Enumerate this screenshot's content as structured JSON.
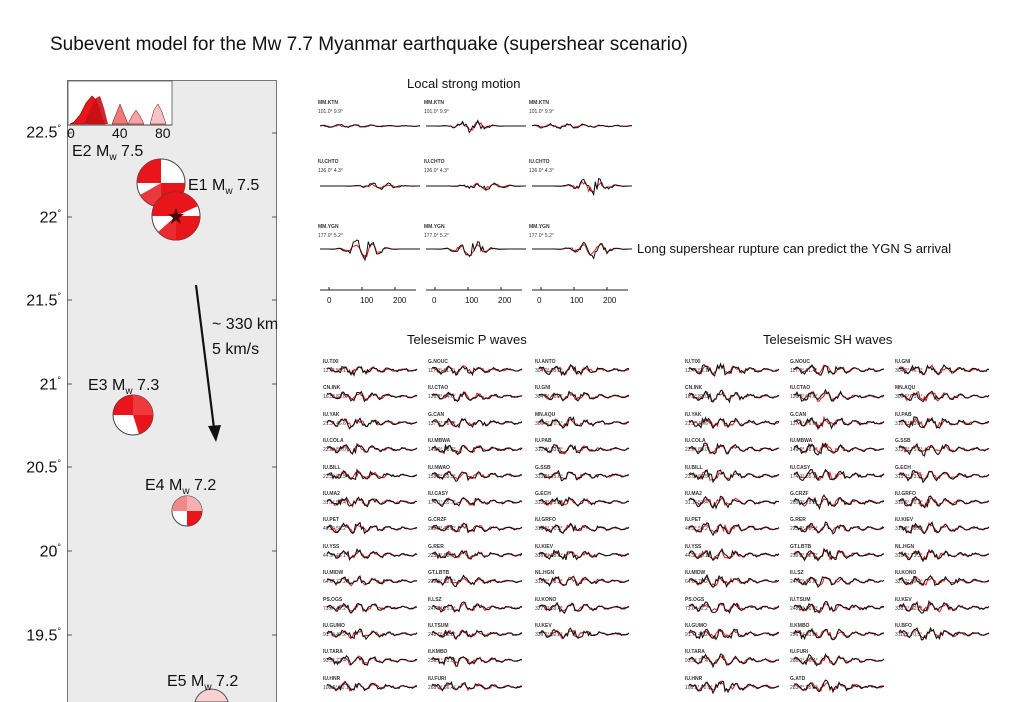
{
  "title": "Subevent model for the Mw 7.7 Myanmar earthquake (supershear scenario)",
  "map": {
    "lat_ticks": [
      "22.5",
      "22",
      "21.5",
      "21",
      "20.5",
      "20",
      "19.5"
    ],
    "inset_ticks": [
      "0",
      "40",
      "80"
    ],
    "events": [
      {
        "id": "E2",
        "mag": "7.5"
      },
      {
        "id": "E1",
        "mag": "7.5"
      },
      {
        "id": "E3",
        "mag": "7.3"
      },
      {
        "id": "E4",
        "mag": "7.2"
      },
      {
        "id": "E5",
        "mag": "7.2"
      }
    ],
    "mw_label": "M",
    "mw_sub": "w",
    "distance": "~ 330 km",
    "speed": "5 km/s",
    "degree": "°"
  },
  "local": {
    "title": "Local strong motion",
    "rows": [
      {
        "station": "MM.KTN",
        "info": "101.0° 9.9°"
      },
      {
        "station": "IU.CHTO",
        "info": "136.0° 4.3°"
      },
      {
        "station": "MM.YGN",
        "info": "177.0° 5.2°"
      }
    ],
    "x_ticks": [
      "0",
      "100",
      "200"
    ],
    "annotation": "Long supershear rupture can predict the YGN S arrival"
  },
  "tele_p": {
    "title": "Teleseismic P waves",
    "columns": [
      [
        {
          "station": "IU.TIXI",
          "info": "12.4° 53.1°"
        },
        {
          "station": "CN.INK",
          "info": "16.5° 83.0°"
        },
        {
          "station": "IU.YAK",
          "info": "21.3° 46.6°"
        },
        {
          "station": "IU.COLA",
          "info": "22.8° 80.0°"
        },
        {
          "station": "IU.BILL",
          "info": "23.5° 62.5°"
        },
        {
          "station": "IU.MA2",
          "info": "31.1° 53.4°"
        },
        {
          "station": "IU.PET",
          "info": "40.2° 56.2°"
        },
        {
          "station": "IU.YSS",
          "info": "44.9° 46.1°"
        },
        {
          "station": "IU.MIDW",
          "info": "64.6° 77.2°"
        },
        {
          "station": "PS.OGS",
          "info": "73.6° 42.2°"
        },
        {
          "station": "IU.GUMO",
          "info": "91.7° 47.2°"
        },
        {
          "station": "IU.TARA",
          "info": "93.9° 77.4°"
        },
        {
          "station": "IU.HNR",
          "info": "108.5° 70.1°"
        }
      ],
      [
        {
          "station": "G.NOUC",
          "info": "117.9° 81.4°"
        },
        {
          "station": "IU.CTAO",
          "info": "126.8° 64.6°"
        },
        {
          "station": "G.CAN",
          "info": "137.6° 76.0°"
        },
        {
          "station": "IU.MBWA",
          "info": "149.9° 48.8°"
        },
        {
          "station": "IU.NWAO",
          "info": "158.9° 59.3°"
        },
        {
          "station": "IU.CASY",
          "info": "174.1° 85.7°"
        },
        {
          "station": "G.CRZF",
          "info": "209.3° 78.8°"
        },
        {
          "station": "G.RER",
          "info": "225.2° 58.1°"
        },
        {
          "station": "GT.LBTB",
          "info": "239.5° 82.7°"
        },
        {
          "station": "II.LSZ",
          "info": "247.0° 75.6°"
        },
        {
          "station": "IU.TSUM",
          "info": "248.0° 86.8°"
        },
        {
          "station": "II.KMBO",
          "info": "256.1° 61.6°"
        },
        {
          "station": "IU.FURI",
          "info": "268.1° 56.4°"
        }
      ],
      [
        {
          "station": "IU.ANTO",
          "info": "304.0° 55.9°"
        },
        {
          "station": "IU.GNI",
          "info": "304.9° 46.7°"
        },
        {
          "station": "MN.AQU",
          "info": "306.6° 70.1°"
        },
        {
          "station": "IU.PAB",
          "info": "310.1° 83.8°"
        },
        {
          "station": "G.SSB",
          "info": "313.2° 75.6°"
        },
        {
          "station": "G.ECH",
          "info": "315.7° 73.1°"
        },
        {
          "station": "IU.GRFO",
          "info": "316.6° 70.2°"
        },
        {
          "station": "IU.KIEV",
          "info": "316.8° 58.6°"
        },
        {
          "station": "NL.HGN",
          "info": "318.5° 73.3°"
        },
        {
          "station": "IU.KONO",
          "info": "327.2° 69.4°"
        },
        {
          "station": "IU.KEV",
          "info": "338.5° 62.3°"
        }
      ]
    ]
  },
  "tele_sh": {
    "title": "Teleseismic SH waves",
    "columns": [
      [
        {
          "station": "IU.TIXI",
          "info": "12.4° 53.1°"
        },
        {
          "station": "CN.INK",
          "info": "16.5° 83.0°"
        },
        {
          "station": "IU.YAK",
          "info": "21.3° 46.6°"
        },
        {
          "station": "IU.COLA",
          "info": "22.8° 80.0°"
        },
        {
          "station": "IU.BILL",
          "info": "23.5° 62.5°"
        },
        {
          "station": "IU.MA2",
          "info": "31.1° 53.4°"
        },
        {
          "station": "IU.PET",
          "info": "40.2° 56.2°"
        },
        {
          "station": "IU.YSS",
          "info": "44.9° 46.1°"
        },
        {
          "station": "IU.MIDW",
          "info": "64.6° 77.2°"
        },
        {
          "station": "PS.OGS",
          "info": "73.6° 42.2°"
        },
        {
          "station": "IU.GUMO",
          "info": "91.7° 47.2°"
        },
        {
          "station": "IU.TARA",
          "info": "93.9° 77.4°"
        },
        {
          "station": "IU.HNR",
          "info": "108.5° 70.1°"
        }
      ],
      [
        {
          "station": "G.NOUC",
          "info": "117.9° 81.4°"
        },
        {
          "station": "IU.CTAO",
          "info": "126.8° 64.6°"
        },
        {
          "station": "G.CAN",
          "info": "137.6° 76.0°"
        },
        {
          "station": "IU.MBWA",
          "info": "149.9° 48.8°"
        },
        {
          "station": "IU.CASY",
          "info": "174.1° 85.7°"
        },
        {
          "station": "G.CRZF",
          "info": "209.3° 78.8°"
        },
        {
          "station": "G.RER",
          "info": "225.2° 58.1°"
        },
        {
          "station": "GT.LBTB",
          "info": "239.5° 82.7°"
        },
        {
          "station": "II.LSZ",
          "info": "247.0° 75.6°"
        },
        {
          "station": "IU.TSUM",
          "info": "248.0° 86.8°"
        },
        {
          "station": "II.KMBO",
          "info": "256.1° 61.6°"
        },
        {
          "station": "IU.FURI",
          "info": "268.1° 56.4°"
        },
        {
          "station": "G.ATD",
          "info": "283.7° 55.3°"
        }
      ],
      [
        {
          "station": "IU.GNI",
          "info": "304.9° 46.7°"
        },
        {
          "station": "MN.AQU",
          "info": "306.6° 70.1°"
        },
        {
          "station": "IU.PAB",
          "info": "310.1° 83.8°"
        },
        {
          "station": "G.SSB",
          "info": "313.2° 75.6°"
        },
        {
          "station": "G.ECH",
          "info": "315.7° 73.1°"
        },
        {
          "station": "IU.GRFO",
          "info": "316.6° 70.2°"
        },
        {
          "station": "IU.KIEV",
          "info": "316.8° 58.6°"
        },
        {
          "station": "NL.HGN",
          "info": "318.5° 73.3°"
        },
        {
          "station": "IU.KONO",
          "info": "327.2° 69.4°"
        },
        {
          "station": "IU.KEV",
          "info": "338.5° 62.3°"
        },
        {
          "station": "IU.BFO",
          "info": "311.5° 70.0°"
        }
      ]
    ]
  },
  "colors": {
    "observed": "#111111",
    "synthetic": "#e11a1a",
    "mechanism_fill": "#e8151b",
    "map_bg": "#ebebeb"
  }
}
